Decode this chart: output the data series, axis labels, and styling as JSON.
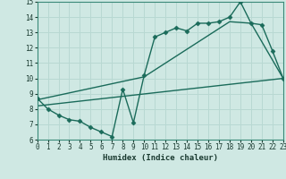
{
  "xlabel": "Humidex (Indice chaleur)",
  "bg_color": "#cfe8e3",
  "grid_color": "#b8d8d2",
  "line_color": "#1a6b5a",
  "xlim": [
    0,
    23
  ],
  "ylim": [
    6,
    15
  ],
  "xticks": [
    0,
    1,
    2,
    3,
    4,
    5,
    6,
    7,
    8,
    9,
    10,
    11,
    12,
    13,
    14,
    15,
    16,
    17,
    18,
    19,
    20,
    21,
    22,
    23
  ],
  "yticks": [
    6,
    7,
    8,
    9,
    10,
    11,
    12,
    13,
    14,
    15
  ],
  "line1_x": [
    0,
    1,
    2,
    3,
    4,
    5,
    6,
    7,
    8,
    9,
    10,
    11,
    12,
    13,
    14,
    15,
    16,
    17,
    18,
    19,
    20,
    21,
    22,
    23
  ],
  "line1_y": [
    8.7,
    8.0,
    7.6,
    7.3,
    7.2,
    6.8,
    6.5,
    6.2,
    9.3,
    7.1,
    10.2,
    12.7,
    13.0,
    13.3,
    13.1,
    13.6,
    13.6,
    13.7,
    14.0,
    15.0,
    13.6,
    13.5,
    11.8,
    10.0
  ],
  "line2_x": [
    0,
    23
  ],
  "line2_y": [
    8.2,
    10.0
  ],
  "line3_x": [
    0,
    10,
    18,
    20,
    23
  ],
  "line3_y": [
    8.6,
    10.1,
    13.7,
    13.6,
    10.0
  ],
  "marker_size": 2.5,
  "linewidth": 1.0
}
